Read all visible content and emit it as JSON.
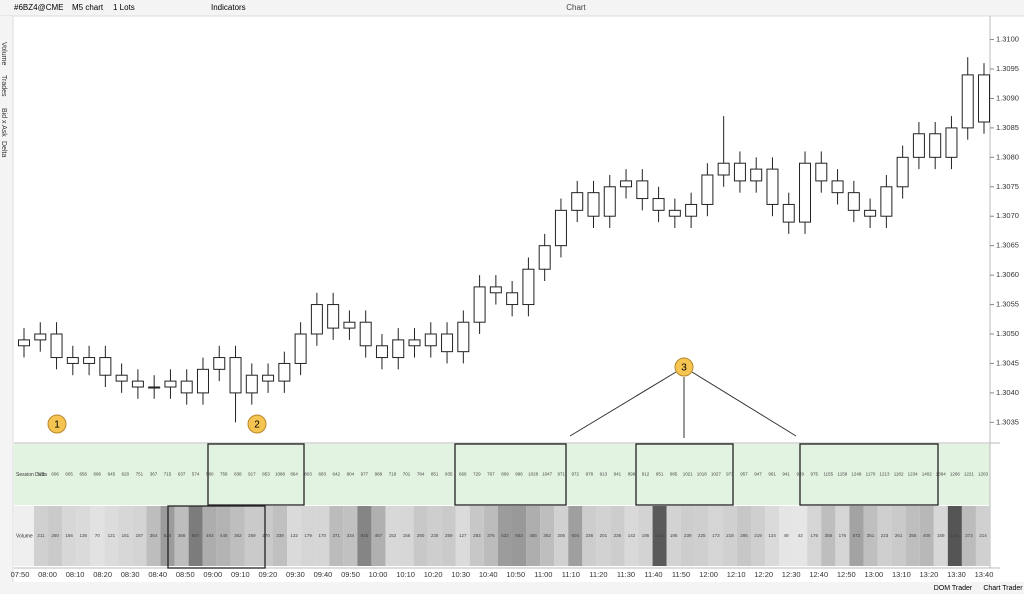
{
  "toolbar": {
    "symbol": "#6BZ4@CME",
    "chart": "M5 chart",
    "lots": "1 Lots",
    "indicators": "Indicators",
    "title": "Chart"
  },
  "sidebar": {
    "labels": [
      "Volume",
      "Trades",
      "Bid x Ask",
      "Delta"
    ]
  },
  "chart_data": {
    "type": "candlestick",
    "ylim": [
      1.3032,
      1.3104
    ],
    "yticks": [
      1.3035,
      {
        "value": 1.304,
        "label": "1.3040"
      },
      1.3045,
      {
        "value": 1.305,
        "label": "1.3050"
      },
      1.3055,
      {
        "value": 1.306,
        "label": "1.3060"
      },
      1.3065,
      {
        "value": 1.307,
        "label": "1.3070"
      },
      1.3075,
      {
        "value": 1.308,
        "label": "1.3080"
      },
      1.3085,
      {
        "value": 1.309,
        "label": "1.3090"
      },
      1.3095,
      {
        "value": 1.31,
        "label": "1.3100"
      }
    ],
    "open": [
      1.3048,
      1.3049,
      1.305,
      1.3046,
      1.3045,
      1.3046,
      1.3043,
      1.3042,
      1.3041,
      1.3041,
      1.3042,
      1.304,
      1.3044,
      1.3046,
      1.304,
      1.3043,
      1.3042,
      1.3045,
      1.305,
      1.3055,
      1.3051,
      1.3052,
      1.3048,
      1.3046,
      1.3049,
      1.3048,
      1.305,
      1.3047,
      1.3052,
      1.3058,
      1.3057,
      1.3055,
      1.3061,
      1.3065,
      1.3071,
      1.3074,
      1.307,
      1.3075,
      1.3076,
      1.3073,
      1.3071,
      1.307,
      1.3072,
      1.3077,
      1.3079,
      1.3076,
      1.3078,
      1.3072,
      1.3069,
      1.3079,
      1.3076,
      1.3074,
      1.3071,
      1.307,
      1.3075,
      1.308,
      1.3084,
      1.308,
      1.3085,
      1.3094
    ],
    "high": [
      1.3051,
      1.3052,
      1.3052,
      1.3048,
      1.3048,
      1.3048,
      1.3045,
      1.3044,
      1.3043,
      1.3044,
      1.3044,
      1.3046,
      1.3048,
      1.3048,
      1.3045,
      1.3045,
      1.3047,
      1.3052,
      1.3057,
      1.3057,
      1.3054,
      1.3054,
      1.305,
      1.3051,
      1.3051,
      1.3052,
      1.3052,
      1.3054,
      1.306,
      1.306,
      1.3059,
      1.3063,
      1.3067,
      1.3073,
      1.3076,
      1.3076,
      1.3077,
      1.3078,
      1.3078,
      1.3075,
      1.3073,
      1.3074,
      1.3079,
      1.3087,
      1.3081,
      1.308,
      1.308,
      1.3074,
      1.3081,
      1.3081,
      1.3078,
      1.3076,
      1.3073,
      1.3077,
      1.3082,
      1.3086,
      1.3086,
      1.3087,
      1.3097,
      1.3096
    ],
    "low": [
      1.3046,
      1.3047,
      1.3044,
      1.3043,
      1.3043,
      1.3041,
      1.304,
      1.3039,
      1.3039,
      1.3039,
      1.3038,
      1.3038,
      1.3042,
      1.3035,
      1.3038,
      1.304,
      1.304,
      1.3043,
      1.3048,
      1.3049,
      1.3049,
      1.3046,
      1.3044,
      1.3044,
      1.3046,
      1.3046,
      1.3045,
      1.3045,
      1.305,
      1.3055,
      1.3053,
      1.3053,
      1.3059,
      1.3063,
      1.3069,
      1.3068,
      1.3068,
      1.3073,
      1.3071,
      1.3069,
      1.3068,
      1.3068,
      1.307,
      1.3075,
      1.3074,
      1.3074,
      1.307,
      1.3067,
      1.3067,
      1.3074,
      1.3072,
      1.3069,
      1.3068,
      1.3068,
      1.3073,
      1.3078,
      1.3078,
      1.3078,
      1.3083,
      1.3084
    ],
    "close": [
      1.3049,
      1.305,
      1.3046,
      1.3045,
      1.3046,
      1.3043,
      1.3042,
      1.3041,
      1.3041,
      1.3042,
      1.304,
      1.3044,
      1.3046,
      1.304,
      1.3043,
      1.3042,
      1.3045,
      1.305,
      1.3055,
      1.3051,
      1.3052,
      1.3048,
      1.3046,
      1.3049,
      1.3048,
      1.305,
      1.3047,
      1.3052,
      1.3058,
      1.3057,
      1.3055,
      1.3061,
      1.3065,
      1.3071,
      1.3074,
      1.307,
      1.3075,
      1.3076,
      1.3073,
      1.3071,
      1.307,
      1.3072,
      1.3077,
      1.3079,
      1.3076,
      1.3078,
      1.3072,
      1.3069,
      1.3079,
      1.3076,
      1.3074,
      1.3071,
      1.307,
      1.3075,
      1.308,
      1.3084,
      1.308,
      1.3085,
      1.3094,
      1.3086
    ],
    "x_labels": [
      "07:50",
      "08:00",
      "08:10",
      "08:20",
      "08:30",
      "08:40",
      "08:50",
      "09:00",
      "09:10",
      "09:20",
      "09:30",
      "09:40",
      "09:50",
      "10:00",
      "10:10",
      "10:20",
      "10:30",
      "10:40",
      "10:50",
      "11:00",
      "11:10",
      "11:20",
      "11:30",
      "11:40",
      "11:50",
      "12:00",
      "12:10",
      "12:20",
      "12:30",
      "12:40",
      "12:50",
      "13:00",
      "13:10",
      "13:20",
      "13:30",
      "13:40"
    ]
  },
  "panel": {
    "rows": [
      {
        "name": "Session Delta",
        "values": [
          522,
          606,
          605,
          656,
          696,
          645,
          620,
          751,
          367,
          715,
          637,
          574,
          580,
          758,
          838,
          917,
          853,
          1088,
          864,
          803,
          683,
          642,
          804,
          977,
          988,
          718,
          701,
          784,
          851,
          935,
          666,
          729,
          767,
          809,
          996,
          1028,
          1047,
          971,
          972,
          978,
          913,
          941,
          899,
          912,
          951,
          985,
          1021,
          1018,
          1027,
          973,
          957,
          947,
          961,
          941,
          929,
          975,
          1155,
          1158,
          1249,
          1170,
          1213,
          1182,
          1234,
          1402,
          1384,
          1266,
          1221,
          1203
        ]
      },
      {
        "name": "Volume",
        "values": [
          211,
          260,
          156,
          135,
          70,
          121,
          161,
          187,
          364,
          630,
          366,
          887,
          493,
          445,
          362,
          259,
          270,
          339,
          132,
          179,
          170,
          371,
          334,
          815,
          467,
          152,
          156,
          280,
          230,
          259,
          127,
          283,
          376,
          632,
          653,
          485,
          362,
          206,
          604,
          236,
          201,
          236,
          142,
          195,
          1151,
          195,
          239,
          225,
          173,
          218,
          286,
          219,
          134,
          48,
          42,
          176,
          358,
          176,
          573,
          351,
          223,
          261,
          355,
          405,
          159,
          1194,
          373,
          214
        ]
      }
    ]
  },
  "annotations": [
    "1",
    "2",
    "3"
  ],
  "footer": {
    "buttons": [
      "DOM Trader",
      "Chart Trader"
    ]
  }
}
